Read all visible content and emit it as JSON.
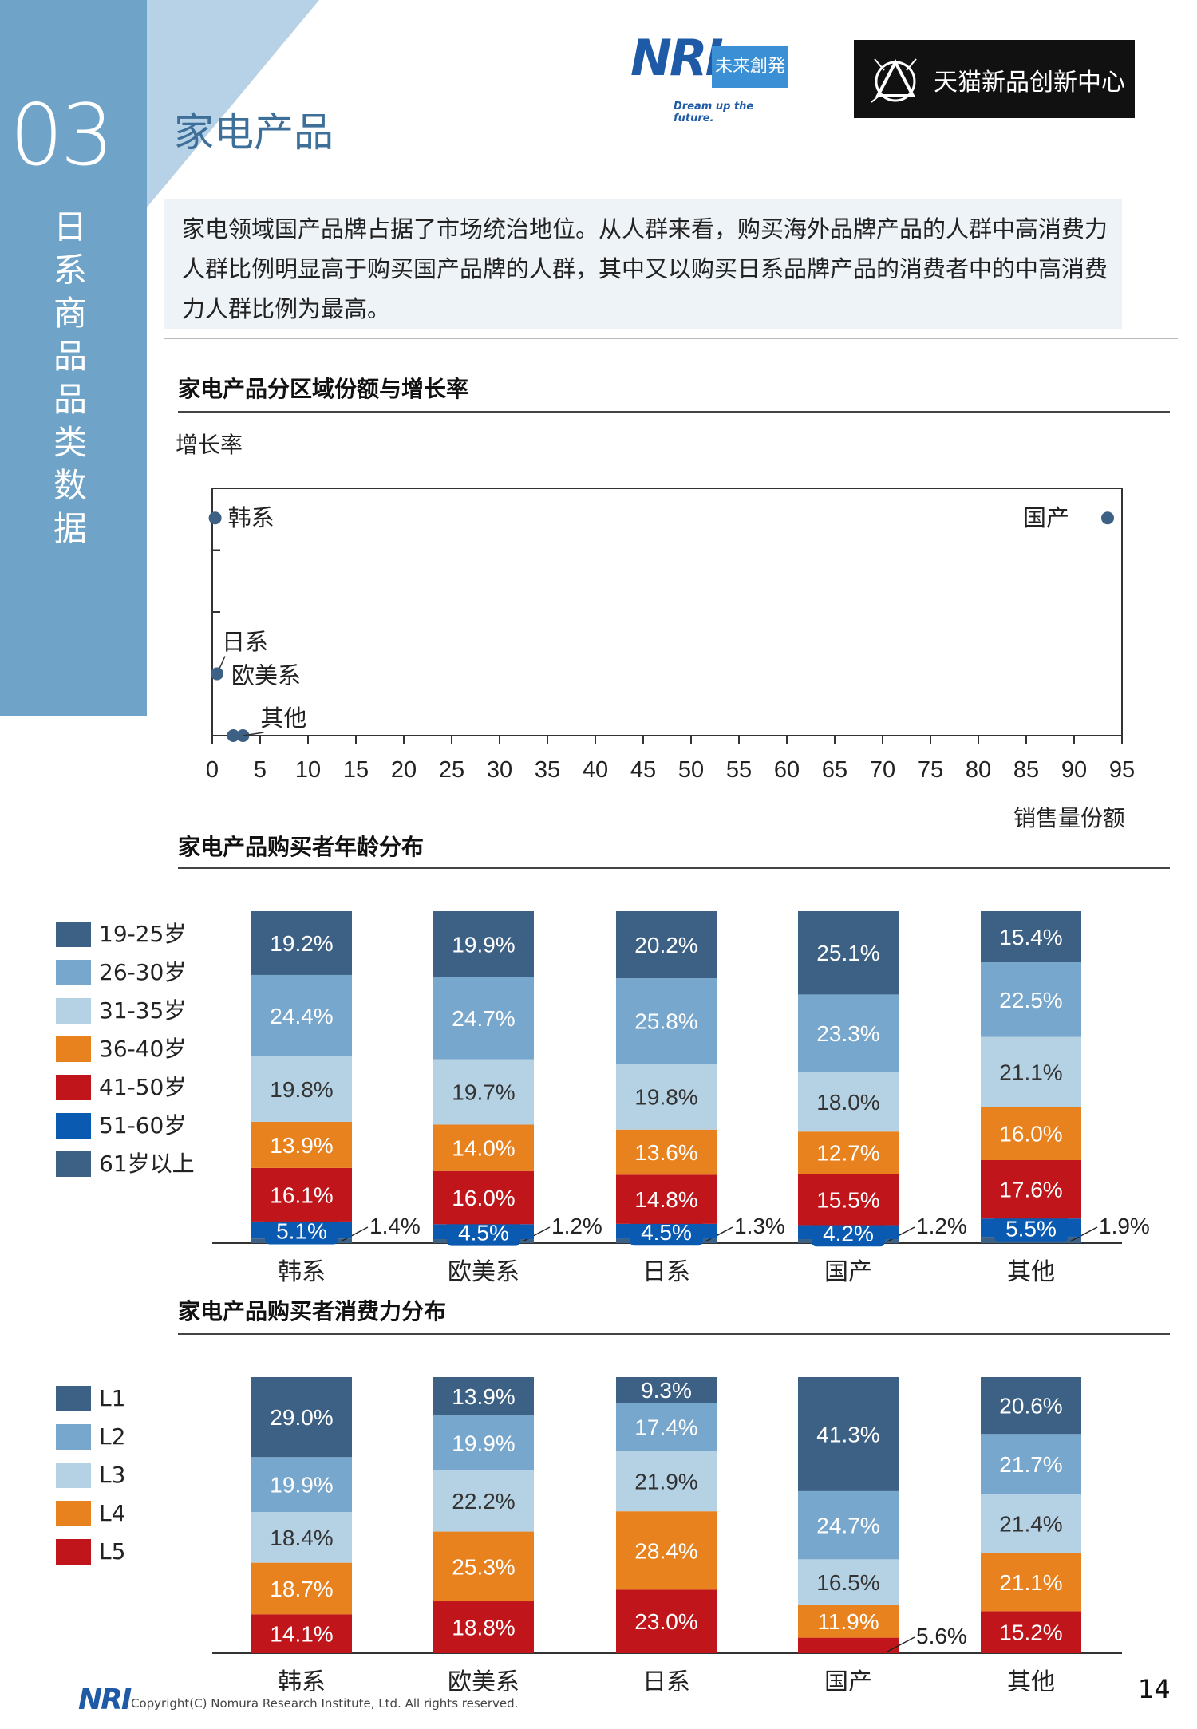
{
  "section": {
    "number": "03",
    "vertical_title": "日系商品品类数据"
  },
  "page_title": "家电产品",
  "logos": {
    "nri_mark": "NRI",
    "nri_box": "未来創発",
    "nri_tagline": "Dream up the future.",
    "tmall_text": "天猫新品创新中心"
  },
  "intro_text": "家电领域国产品牌占据了市场统治地位。从人群来看，购买海外品牌产品的人群中高消费力人群比例明显高于购买国产品牌的人群，其中又以购买日系品牌产品的消费者中的中高消费力人群比例为最高。",
  "colors": {
    "c1": "#3d6185",
    "c2": "#78a7cd",
    "c3": "#b5d2e5",
    "c4": "#e8821e",
    "c5": "#c0161b",
    "c6": "#0a5ab1",
    "c7": "#3d6185"
  },
  "chart_data": [
    {
      "type": "scatter",
      "title": "家电产品分区域份额与增长率",
      "ylabel": "增长率",
      "xlabel": "销售量份额",
      "xlim": [
        0,
        95
      ],
      "x_ticks": [
        "0",
        "5",
        "10",
        "15",
        "20",
        "25",
        "30",
        "35",
        "40",
        "45",
        "50",
        "55",
        "60",
        "65",
        "70",
        "75",
        "80",
        "85",
        "90",
        "95"
      ],
      "points": [
        {
          "label": "韩系",
          "x": 0.3,
          "y": 0.88
        },
        {
          "label": "日系",
          "x": 0.5,
          "y": 0.25
        },
        {
          "label": "欧美系",
          "x": 0.5,
          "y": 0.25
        },
        {
          "label": "其他",
          "x": 2.2,
          "y": 0.0
        },
        {
          "label": "其他",
          "x": 3.2,
          "y": 0.0
        },
        {
          "label": "国产",
          "x": 93.5,
          "y": 0.88
        }
      ]
    },
    {
      "type": "bar",
      "stacked": true,
      "title": "家电产品购买者年龄分布",
      "categories": [
        "韩系",
        "欧美系",
        "日系",
        "国产",
        "其他"
      ],
      "series": [
        {
          "name": "61岁以上",
          "values": [
            1.4,
            1.2,
            1.3,
            1.2,
            1.9
          ]
        },
        {
          "name": "51-60岁",
          "values": [
            5.1,
            4.5,
            4.5,
            4.2,
            5.5
          ]
        },
        {
          "name": "41-50岁",
          "values": [
            16.1,
            16.0,
            14.8,
            15.5,
            17.6
          ]
        },
        {
          "name": "36-40岁",
          "values": [
            13.9,
            14.0,
            13.6,
            12.7,
            16.0
          ]
        },
        {
          "name": "31-35岁",
          "values": [
            19.8,
            19.7,
            19.8,
            18.0,
            21.1
          ]
        },
        {
          "name": "26-30岁",
          "values": [
            24.4,
            24.7,
            25.8,
            23.3,
            22.5
          ]
        },
        {
          "name": "19-25岁",
          "values": [
            19.2,
            19.9,
            20.2,
            25.1,
            15.4
          ]
        }
      ],
      "legend": [
        "19-25岁",
        "26-30岁",
        "31-35岁",
        "36-40岁",
        "41-50岁",
        "51-60岁",
        "61岁以上"
      ]
    },
    {
      "type": "bar",
      "stacked": true,
      "title": "家电产品购买者消费力分布",
      "categories": [
        "韩系",
        "欧美系",
        "日系",
        "国产",
        "其他"
      ],
      "series": [
        {
          "name": "L5",
          "values": [
            14.1,
            18.8,
            23.0,
            5.6,
            15.2
          ]
        },
        {
          "name": "L4",
          "values": [
            18.7,
            25.3,
            28.4,
            11.9,
            21.1
          ]
        },
        {
          "name": "L3",
          "values": [
            18.4,
            22.2,
            21.9,
            16.5,
            21.4
          ]
        },
        {
          "name": "L2",
          "values": [
            19.9,
            19.9,
            17.4,
            24.7,
            21.7
          ]
        },
        {
          "name": "L1",
          "values": [
            29.0,
            13.9,
            9.3,
            41.3,
            20.6
          ]
        }
      ],
      "legend": [
        "L1",
        "L2",
        "L3",
        "L4",
        "L5"
      ]
    }
  ],
  "footer": {
    "nri": "NRI",
    "copyright": "Copyright(C)  Nomura Research Institute,  Ltd. All rights reserved.",
    "page_number": "14"
  }
}
